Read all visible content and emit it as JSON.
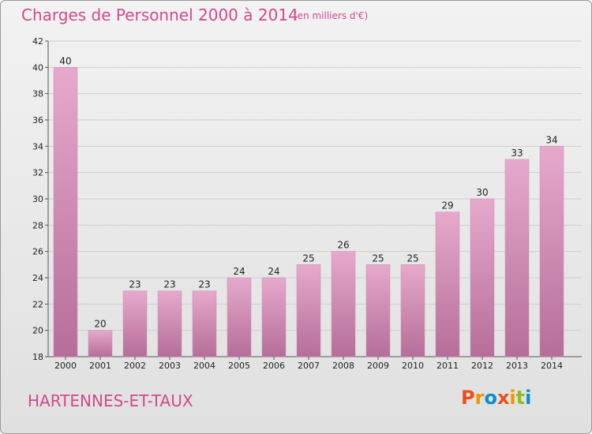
{
  "header": {
    "title": "Charges de Personnel 2000 à 2014",
    "subtitle": "(en milliers d'€)"
  },
  "footer": {
    "commune": "HARTENNES-ET-TAUX",
    "logo": "Proxiti"
  },
  "colors": {
    "accent": "#d04a8e",
    "bar_light": "#e6a9cc",
    "bar_dark": "#b56e98",
    "logo_letters": [
      "#e94e1b",
      "#f39200",
      "#0a8ed0",
      "#e94e1b",
      "#f39200",
      "#8cbe22",
      "#0a8ed0"
    ]
  },
  "chart_data": {
    "type": "bar",
    "categories": [
      "2000",
      "2001",
      "2002",
      "2003",
      "2004",
      "2005",
      "2006",
      "2007",
      "2008",
      "2009",
      "2010",
      "2011",
      "2012",
      "2013",
      "2014"
    ],
    "values": [
      40,
      20,
      23,
      23,
      23,
      24,
      24,
      25,
      26,
      25,
      25,
      29,
      30,
      33,
      34
    ],
    "title": "Charges de Personnel 2000 à 2014",
    "ylim": [
      18,
      42
    ],
    "yticks": [
      18,
      20,
      22,
      24,
      26,
      28,
      30,
      32,
      34,
      36,
      38,
      40,
      42
    ],
    "grid": true
  }
}
